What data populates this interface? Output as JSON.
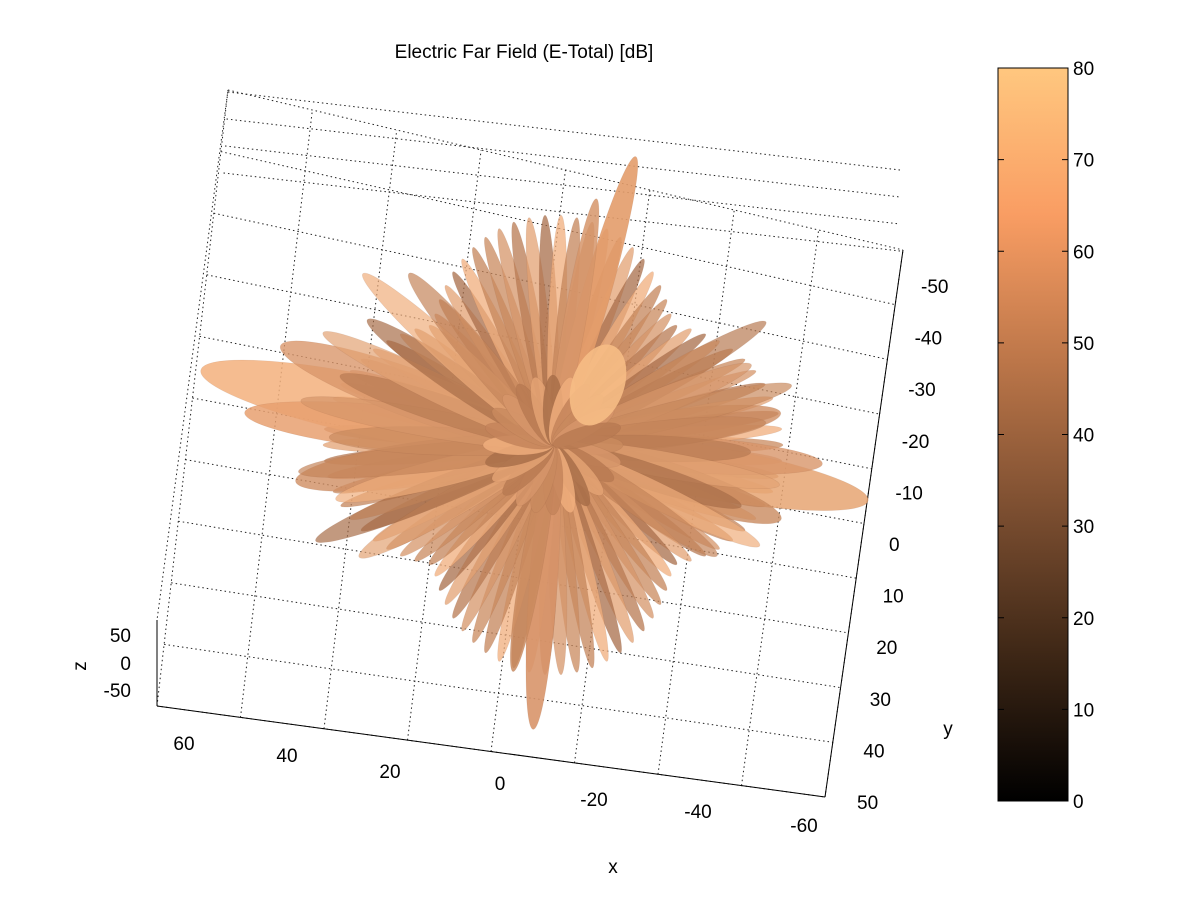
{
  "chart_data": {
    "type": "surface-3d",
    "title": "Electric Far Field (E-Total) [dB]",
    "xlabel": "x",
    "ylabel": "y",
    "zlabel": "z",
    "x_ticks": [
      "60",
      "40",
      "20",
      "0",
      "-20",
      "-40",
      "-60"
    ],
    "y_ticks": [
      "-50",
      "-40",
      "-30",
      "-20",
      "-10",
      "0",
      "10",
      "20",
      "30",
      "40",
      "50"
    ],
    "z_ticks": [
      "50",
      "0",
      "-50"
    ],
    "xlim": [
      -70,
      70
    ],
    "ylim": [
      -55,
      55
    ],
    "zlim": [
      -70,
      70
    ],
    "grid": true,
    "colorbar": {
      "ticks": [
        "80",
        "70",
        "60",
        "50",
        "40",
        "30",
        "20",
        "10",
        "0"
      ],
      "range": [
        0,
        80
      ],
      "colormap": "copper",
      "color_low": "#000000",
      "color_high": "#ffc77f"
    },
    "series": [
      {
        "value_db": 80,
        "lobe": "main"
      }
    ]
  }
}
